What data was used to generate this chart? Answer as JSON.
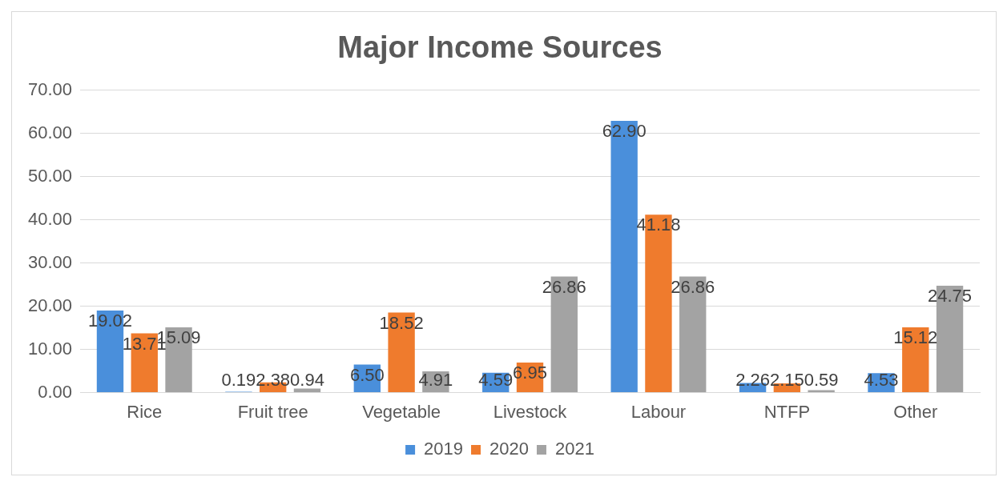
{
  "chart_data": {
    "type": "bar",
    "title": "Major Income Sources",
    "categories": [
      "Rice",
      "Fruit tree",
      "Vegetable",
      "Livestock",
      "Labour",
      "NTFP",
      "Other"
    ],
    "series": [
      {
        "name": "2019",
        "color": "#4a8fdb",
        "values": [
          19.02,
          0.19,
          6.5,
          4.59,
          62.9,
          2.26,
          4.53
        ],
        "value_labels": [
          "19.02",
          "0.19",
          "6.50",
          "4.59",
          "62.90",
          "2.26",
          "4.53"
        ]
      },
      {
        "name": "2020",
        "color": "#ef7b2d",
        "values": [
          13.71,
          2.38,
          18.52,
          6.95,
          41.18,
          2.15,
          15.12
        ],
        "value_labels": [
          "13.71",
          "2.38",
          "18.52",
          "6.95",
          "41.18",
          "2.15",
          "15.12"
        ]
      },
      {
        "name": "2021",
        "color": "#a3a3a3",
        "values": [
          15.09,
          0.94,
          4.91,
          26.86,
          26.86,
          0.59,
          24.75
        ],
        "value_labels": [
          "15.09",
          "0.94",
          "4.91",
          "26.86",
          "26.86",
          "0.59",
          "24.75"
        ]
      }
    ],
    "ylim": [
      0,
      70
    ],
    "yticks": [
      {
        "value": 0,
        "label": "0.00"
      },
      {
        "value": 10,
        "label": "10.00"
      },
      {
        "value": 20,
        "label": "20.00"
      },
      {
        "value": 30,
        "label": "30.00"
      },
      {
        "value": 40,
        "label": "40.00"
      },
      {
        "value": 50,
        "label": "50.00"
      },
      {
        "value": 60,
        "label": "60.00"
      },
      {
        "value": 70,
        "label": "70.00"
      }
    ],
    "grid": "y",
    "legend": "bottom"
  }
}
